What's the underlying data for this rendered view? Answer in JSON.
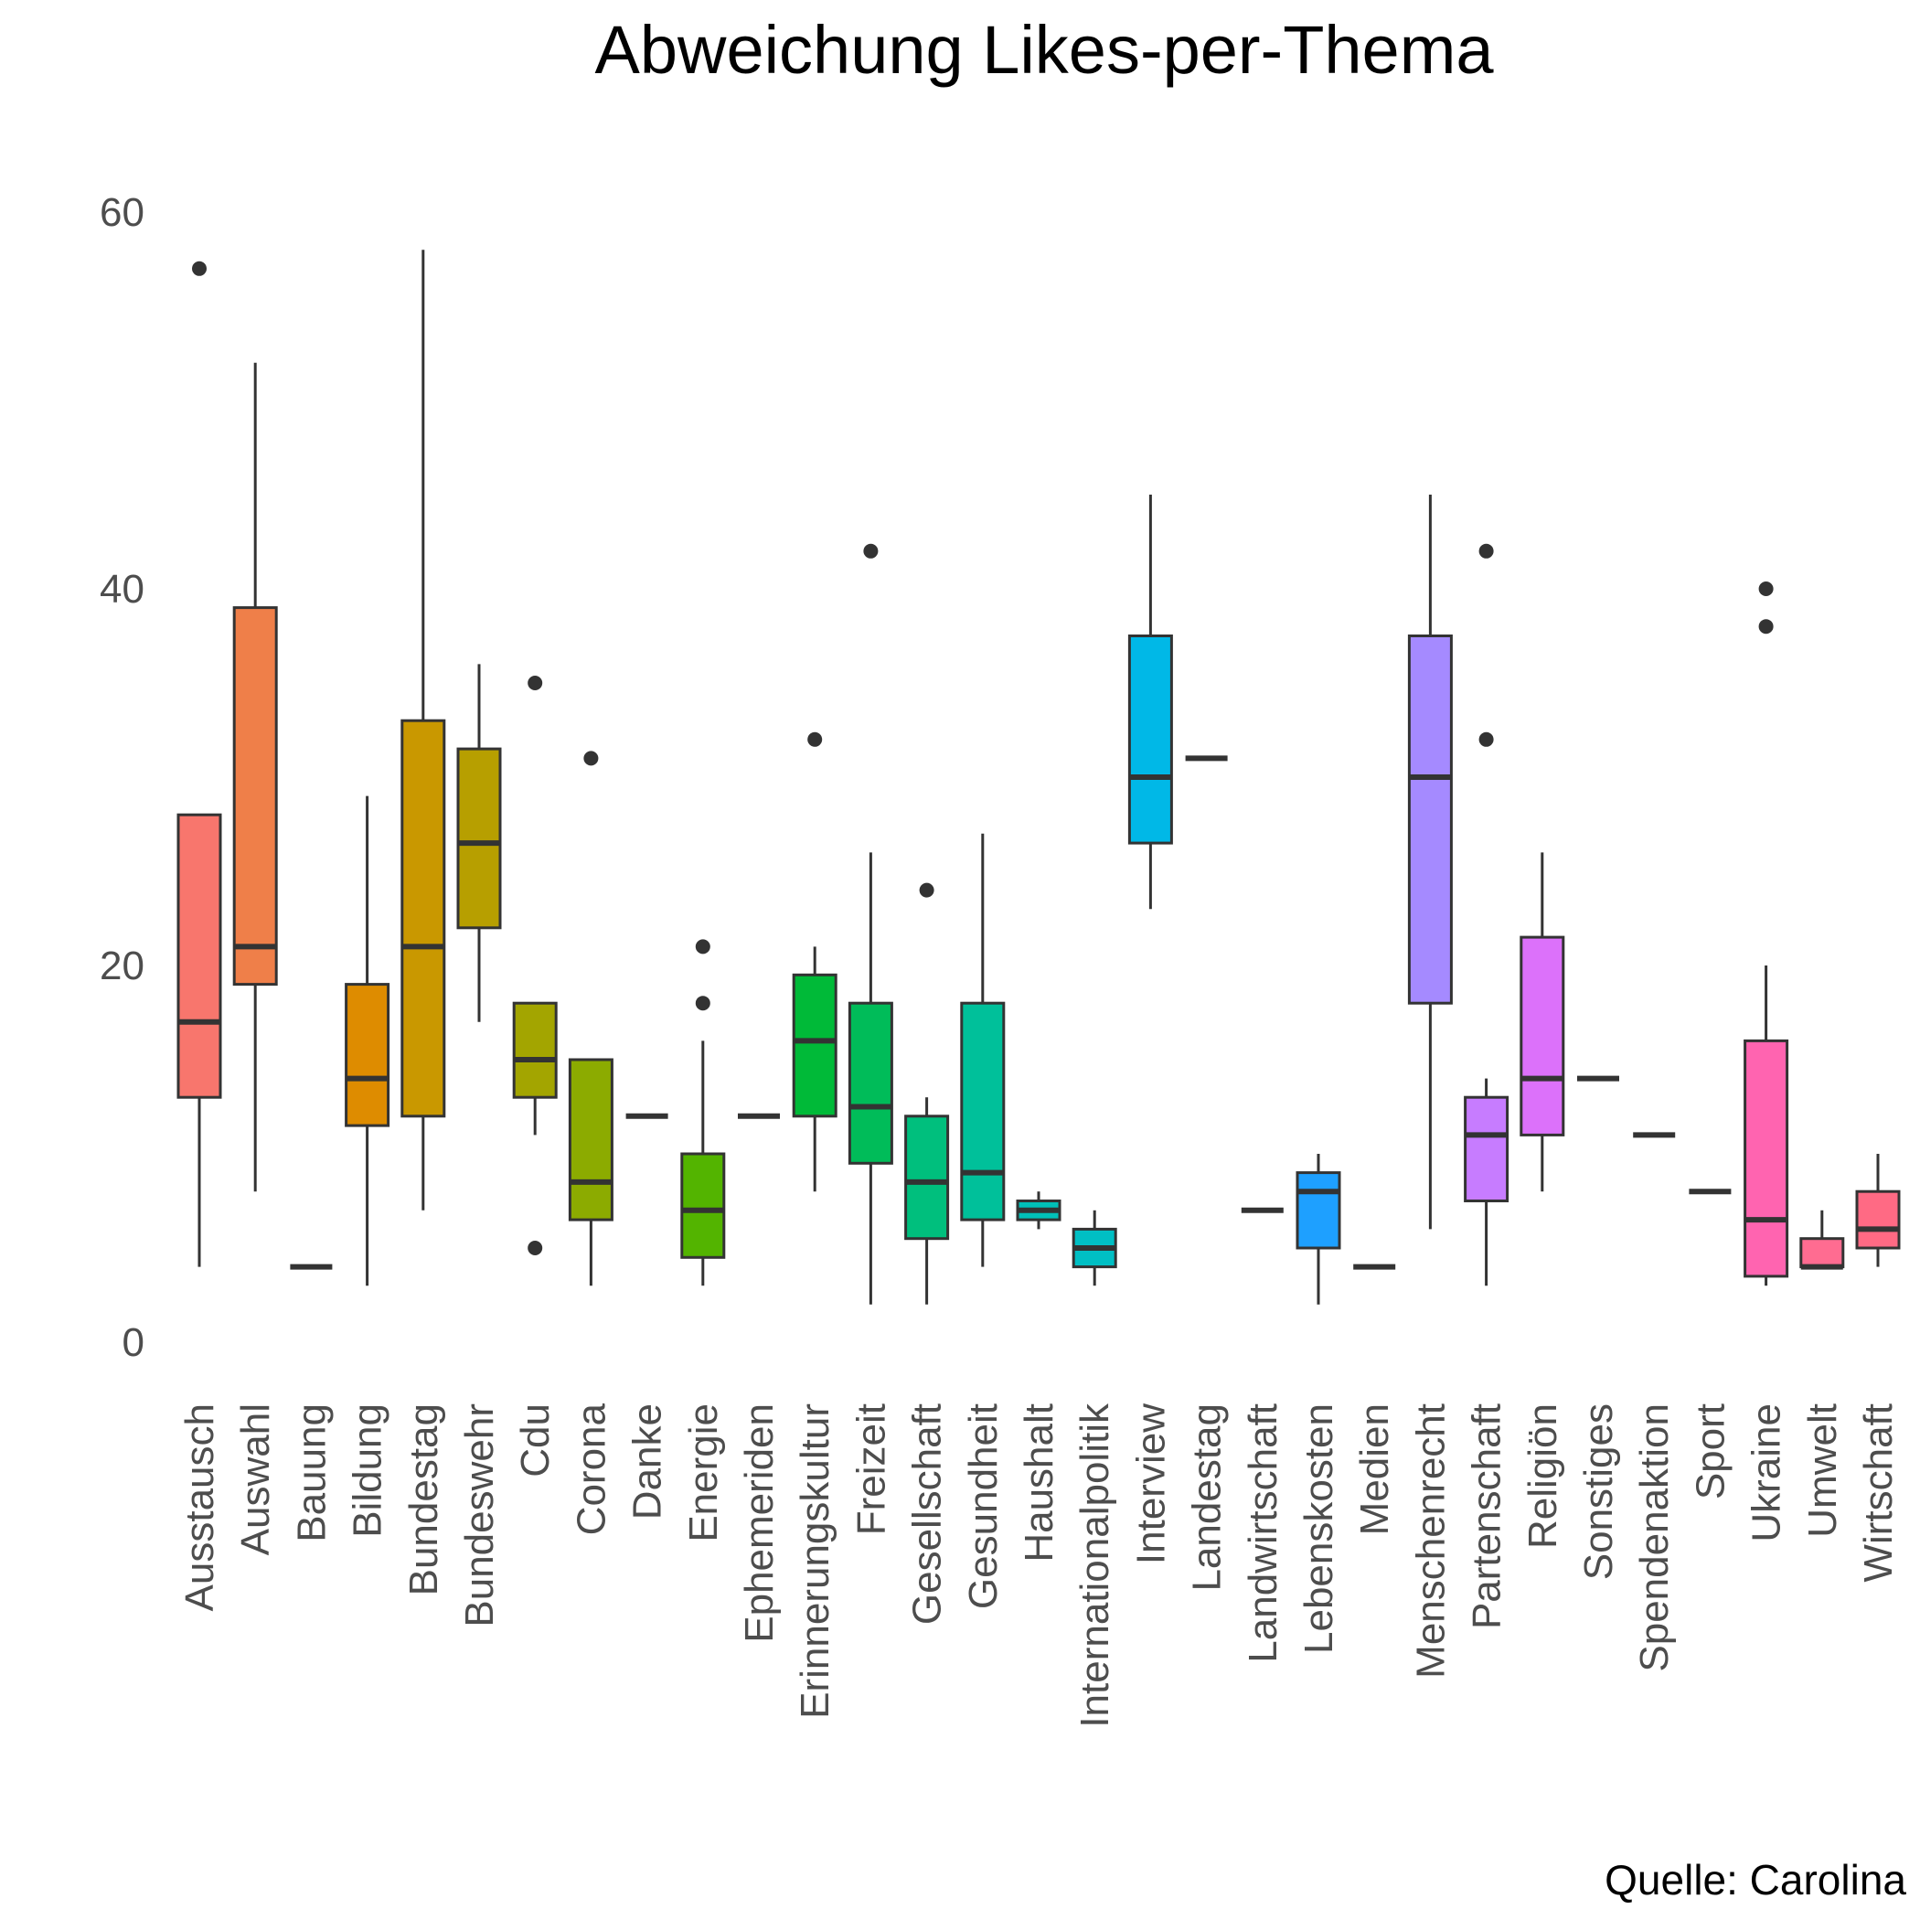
{
  "chart_data": {
    "type": "boxplot",
    "title": "Abweichung Likes-per-Thema",
    "caption": "Quelle: Carolina",
    "xlabel": "",
    "ylabel": "",
    "ylim": [
      -1,
      62
    ],
    "yticks": [
      0,
      20,
      40,
      60
    ],
    "grid": false,
    "legend": "none",
    "categories": [
      "Ausstausch",
      "Auswahl",
      "Bauung",
      "Bildung",
      "Bundestag",
      "Bundeswehr",
      "Cdu",
      "Corona",
      "Danke",
      "Energie",
      "Ephemeriden",
      "Erinnerungskultur",
      "Freizeit",
      "Gesellschaft",
      "Gesundheit",
      "Haushalt",
      "Internationalpolitik",
      "Interview",
      "Landestag",
      "Landwirtschaft",
      "Lebenskosten",
      "Medien",
      "Menschenrecht",
      "Partenschaft",
      "Religiön",
      "Sonstiges",
      "Spendenaktion",
      "Sport",
      "Ukraine",
      "Umwelt",
      "Wirtschaft"
    ],
    "boxes": [
      {
        "category": "Ausstausch",
        "color": "#F8766D",
        "min": 4,
        "q1": 13,
        "median": 17,
        "q3": 28,
        "max": 28,
        "outliers": [
          57
        ]
      },
      {
        "category": "Auswahl",
        "color": "#EF7F49",
        "min": 8,
        "q1": 19,
        "median": 21,
        "q3": 39,
        "max": 52,
        "outliers": []
      },
      {
        "category": "Bauung",
        "color": "#E38900",
        "min": 4,
        "q1": 4,
        "median": 4,
        "q3": 4,
        "max": 4,
        "outliers": []
      },
      {
        "category": "Bildung",
        "color": "#DE8C00",
        "min": 3,
        "q1": 11.5,
        "median": 14,
        "q3": 19,
        "max": 29,
        "outliers": []
      },
      {
        "category": "Bundestag",
        "color": "#C99800",
        "min": 7,
        "q1": 12,
        "median": 21,
        "q3": 33,
        "max": 58,
        "outliers": []
      },
      {
        "category": "Bundeswehr",
        "color": "#B79F00",
        "min": 17,
        "q1": 22,
        "median": 26.5,
        "q3": 31.5,
        "max": 36,
        "outliers": []
      },
      {
        "category": "Cdu",
        "color": "#A3A500",
        "min": 11,
        "q1": 13,
        "median": 15,
        "q3": 18,
        "max": 18,
        "outliers": [
          35,
          5
        ]
      },
      {
        "category": "Corona",
        "color": "#8CAB00",
        "min": 3,
        "q1": 6.5,
        "median": 8.5,
        "q3": 15,
        "max": 15,
        "outliers": [
          31
        ]
      },
      {
        "category": "Danke",
        "color": "#6BB100",
        "min": 12,
        "q1": 12,
        "median": 12,
        "q3": 12,
        "max": 12,
        "outliers": []
      },
      {
        "category": "Energie",
        "color": "#53B400",
        "min": 3,
        "q1": 4.5,
        "median": 7,
        "q3": 10,
        "max": 16,
        "outliers": [
          21,
          18
        ]
      },
      {
        "category": "Ephemeriden",
        "color": "#00B81F",
        "min": 12,
        "q1": 12,
        "median": 12,
        "q3": 12,
        "max": 12,
        "outliers": []
      },
      {
        "category": "Erinnerungskultur",
        "color": "#00BA38",
        "min": 8,
        "q1": 12,
        "median": 16,
        "q3": 19.5,
        "max": 21,
        "outliers": [
          32
        ]
      },
      {
        "category": "Freizeit",
        "color": "#00BC59",
        "min": 2,
        "q1": 9.5,
        "median": 12.5,
        "q3": 18,
        "max": 26,
        "outliers": [
          42
        ]
      },
      {
        "category": "Gesellschaft",
        "color": "#00BF7D",
        "min": 2,
        "q1": 5.5,
        "median": 8.5,
        "q3": 12,
        "max": 13,
        "outliers": [
          24
        ]
      },
      {
        "category": "Gesundheit",
        "color": "#00C09A",
        "min": 4,
        "q1": 6.5,
        "median": 9,
        "q3": 18,
        "max": 27,
        "outliers": []
      },
      {
        "category": "Haushalt",
        "color": "#00C0B8",
        "min": 6,
        "q1": 6.5,
        "median": 7,
        "q3": 7.5,
        "max": 8,
        "outliers": []
      },
      {
        "category": "Internationalpolitik",
        "color": "#00BFC4",
        "min": 3,
        "q1": 4,
        "median": 5,
        "q3": 6,
        "max": 7,
        "outliers": []
      },
      {
        "category": "Interview",
        "color": "#00B8E7",
        "min": 23,
        "q1": 26.5,
        "median": 30,
        "q3": 37.5,
        "max": 45,
        "outliers": []
      },
      {
        "category": "Landestag",
        "color": "#00B0F6",
        "min": 31,
        "q1": 31,
        "median": 31,
        "q3": 31,
        "max": 31,
        "outliers": []
      },
      {
        "category": "Landwirtschaft",
        "color": "#00A5FF",
        "min": 7,
        "q1": 7,
        "median": 7,
        "q3": 7,
        "max": 7,
        "outliers": []
      },
      {
        "category": "Lebenskosten",
        "color": "#1EA0FF",
        "min": 2,
        "q1": 5,
        "median": 8,
        "q3": 9,
        "max": 10,
        "outliers": []
      },
      {
        "category": "Medien",
        "color": "#4D8EFF",
        "min": 4,
        "q1": 4,
        "median": 4,
        "q3": 4,
        "max": 4,
        "outliers": []
      },
      {
        "category": "Menschenrecht",
        "color": "#A58AFF",
        "min": 6,
        "q1": 18,
        "median": 30,
        "q3": 37.5,
        "max": 45,
        "outliers": []
      },
      {
        "category": "Partenschaft",
        "color": "#C77CFF",
        "min": 3,
        "q1": 7.5,
        "median": 11,
        "q3": 13,
        "max": 14,
        "outliers": [
          42,
          32
        ]
      },
      {
        "category": "Religiön",
        "color": "#DC71FA",
        "min": 8,
        "q1": 11,
        "median": 14,
        "q3": 21.5,
        "max": 26,
        "outliers": []
      },
      {
        "category": "Sonstiges",
        "color": "#E76BF3",
        "min": 14,
        "q1": 14,
        "median": 14,
        "q3": 14,
        "max": 14,
        "outliers": []
      },
      {
        "category": "Spendenaktion",
        "color": "#F062E4",
        "min": 11,
        "q1": 11,
        "median": 11,
        "q3": 11,
        "max": 11,
        "outliers": []
      },
      {
        "category": "Sport",
        "color": "#FB61D7",
        "min": 8,
        "q1": 8,
        "median": 8,
        "q3": 8,
        "max": 8,
        "outliers": []
      },
      {
        "category": "Ukraine",
        "color": "#FF64B0",
        "min": 3,
        "q1": 3.5,
        "median": 6.5,
        "q3": 16,
        "max": 20,
        "outliers": [
          40,
          38
        ]
      },
      {
        "category": "Umwelt",
        "color": "#FF6C91",
        "min": 4,
        "q1": 4,
        "median": 4,
        "q3": 5.5,
        "max": 7,
        "outliers": []
      },
      {
        "category": "Wirtschaft",
        "color": "#FF6A84",
        "min": 4,
        "q1": 5,
        "median": 6,
        "q3": 8,
        "max": 10,
        "outliers": []
      }
    ]
  }
}
